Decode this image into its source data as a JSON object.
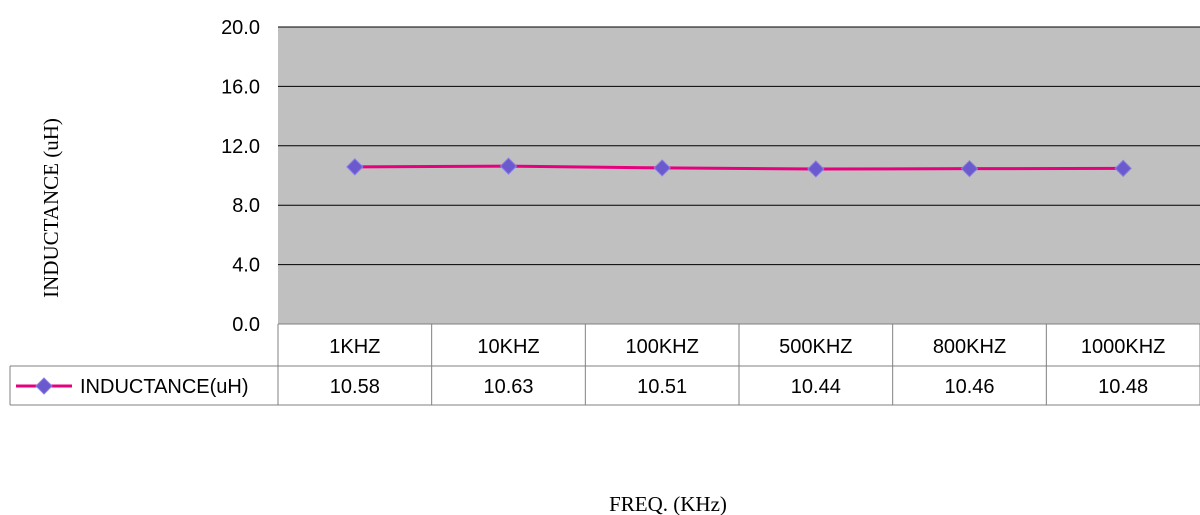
{
  "chart_data": {
    "type": "line",
    "title": "",
    "xlabel": "FREQ. (KHz)",
    "ylabel": "INDUCTANCE (uH)",
    "ylim": [
      0,
      20
    ],
    "yticks": [
      "0.0",
      "4.0",
      "8.0",
      "12.0",
      "16.0",
      "20.0"
    ],
    "categories": [
      "1KHZ",
      "10KHZ",
      "100KHZ",
      "500KHZ",
      "800KHZ",
      "1000KHZ"
    ],
    "grid": true,
    "legend": "data-table",
    "series": [
      {
        "name": "INDUCTANCE(uH)",
        "values": [
          10.58,
          10.63,
          10.51,
          10.44,
          10.46,
          10.48
        ],
        "labels": [
          "10.58",
          "10.63",
          "10.51",
          "10.44",
          "10.46",
          "10.48"
        ],
        "color": "#e6007e",
        "marker_color": "#6a5acd"
      }
    ],
    "colors": {
      "plot_background": "#c0c0c0",
      "gridline": "#000000"
    }
  }
}
